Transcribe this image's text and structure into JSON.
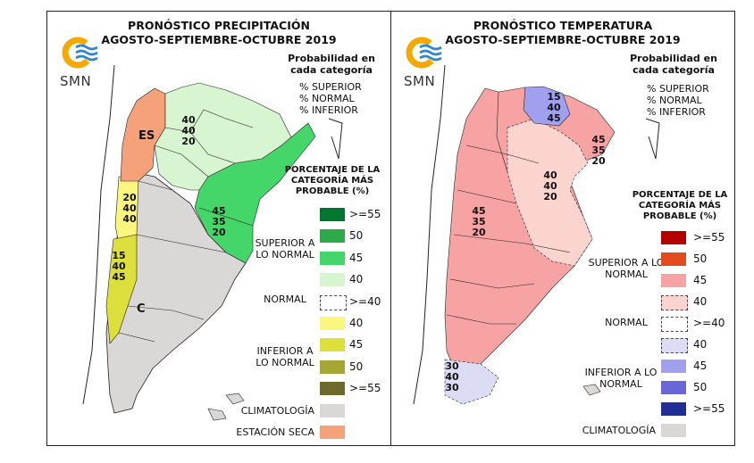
{
  "left": {
    "title_line1": "PRONÓSTICO PRECIPITACIÓN",
    "title_line2": "AGOSTO-SEPTIEMBRE-OCTUBRE 2019",
    "logo_text": "SMN",
    "prob_title": "Probabilidad en cada categoría",
    "prob_lines": [
      "% SUPERIOR",
      "% NORMAL",
      "% INFERIOR"
    ],
    "legend_title": "PORCENTAJE DE LA CATEGORÍA MÁS PROBABLE (%)",
    "groups": {
      "superior": "SUPERIOR A LO NORMAL",
      "normal": "NORMAL",
      "inferior": "INFERIOR A LO NORMAL"
    },
    "swatches": [
      {
        "label": ">=55",
        "color": "#00772e"
      },
      {
        "label": "50",
        "color": "#2faa4a"
      },
      {
        "label": "45",
        "color": "#45d66a"
      },
      {
        "label": "40",
        "color": "#d8f5d2"
      },
      {
        "label": ">=40",
        "color": "#ffffff"
      },
      {
        "label": "40",
        "color": "#fbf77e"
      },
      {
        "label": "45",
        "color": "#dddf3c"
      },
      {
        "label": "50",
        "color": "#a6a634"
      },
      {
        "label": ">=55",
        "color": "#6d6a2c"
      },
      {
        "label": "CLIMATOLOGÍA",
        "color": "#d9d8d6"
      },
      {
        "label": "ESTACIÓN SECA",
        "color": "#f5a27a"
      }
    ],
    "map_labels": {
      "es": "ES",
      "c": "C",
      "north": [
        "40",
        "40",
        "20"
      ],
      "east": [
        "45",
        "35",
        "20"
      ],
      "west1": [
        "20",
        "40",
        "40"
      ],
      "west2": [
        "15",
        "40",
        "45"
      ]
    }
  },
  "right": {
    "title_line1": "PRONÓSTICO TEMPERATURA",
    "title_line2": "AGOSTO-SEPTIEMBRE-OCTUBRE 2019",
    "logo_text": "SMN",
    "prob_title": "Probabilidad en cada categoría",
    "prob_lines": [
      "% SUPERIOR",
      "% NORMAL",
      "% INFERIOR"
    ],
    "legend_title": "PORCENTAJE DE LA CATEGORÍA MÁS PROBABLE (%)",
    "groups": {
      "superior": "SUPERIOR A LO NORMAL",
      "normal": "NORMAL",
      "inferior": "INFERIOR A LO NORMAL"
    },
    "swatches": [
      {
        "label": ">=55",
        "color": "#b40000"
      },
      {
        "label": "50",
        "color": "#e34a1e"
      },
      {
        "label": "45",
        "color": "#f7a3a3"
      },
      {
        "label": "40",
        "color": "#fbd4cf"
      },
      {
        "label": ">=40",
        "color": "#ffffff"
      },
      {
        "label": "40",
        "color": "#dcdcf5"
      },
      {
        "label": "45",
        "color": "#a0a0ee"
      },
      {
        "label": "50",
        "color": "#6767d9"
      },
      {
        "label": ">=55",
        "color": "#1f2f96"
      },
      {
        "label": "CLIMATOLOGÍA",
        "color": "#d9d8d6"
      }
    ],
    "map_labels": {
      "north": [
        "15",
        "40",
        "45"
      ],
      "ne": [
        "45",
        "35",
        "20"
      ],
      "center": [
        "40",
        "40",
        "20"
      ],
      "west": [
        "45",
        "35",
        "20"
      ],
      "south": [
        "30",
        "40",
        "30"
      ]
    }
  }
}
